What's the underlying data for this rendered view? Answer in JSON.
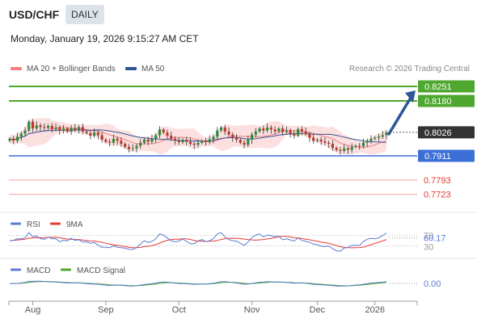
{
  "header": {
    "symbol": "USD/CHF",
    "timeframe": "DAILY",
    "datetime": "Monday, January 19, 2026 9:15:27 AM CET"
  },
  "legend": {
    "ma20_label": "MA 20 + Bollinger Bands",
    "ma20_color": "#f08080",
    "ma50_label": "MA 50",
    "ma50_color": "#2f5597",
    "credit": "Research © 2026 Trading Central"
  },
  "chart_data": [
    {
      "type": "candlestick",
      "title": "",
      "x_labels": [
        "Aug",
        "Sep",
        "Oct",
        "Nov",
        "Dec",
        "2026"
      ],
      "ylim": [
        0.775,
        0.826
      ],
      "grid": false,
      "close": [
        0.7995,
        0.7985,
        0.8005,
        0.802,
        0.8035,
        0.8078,
        0.8045,
        0.806,
        0.8052,
        0.8048,
        0.8058,
        0.8042,
        0.805,
        0.8035,
        0.8045,
        0.803,
        0.8048,
        0.804,
        0.8052,
        0.803,
        0.8022,
        0.801,
        0.8025,
        0.8012,
        0.799,
        0.798,
        0.7975,
        0.7995,
        0.7985,
        0.797,
        0.7955,
        0.7945,
        0.7948,
        0.796,
        0.7975,
        0.799,
        0.798,
        0.7995,
        0.8012,
        0.804,
        0.8025,
        0.801,
        0.7995,
        0.7985,
        0.7978,
        0.799,
        0.798,
        0.797,
        0.7965,
        0.7975,
        0.7985,
        0.7978,
        0.7992,
        0.8005,
        0.8035,
        0.805,
        0.803,
        0.8015,
        0.8,
        0.799,
        0.7975,
        0.7965,
        0.799,
        0.8015,
        0.803,
        0.8045,
        0.8035,
        0.805,
        0.804,
        0.803,
        0.8045,
        0.8028,
        0.8035,
        0.802,
        0.801,
        0.8042,
        0.803,
        0.8018,
        0.8,
        0.7985,
        0.799,
        0.7982,
        0.7975,
        0.797,
        0.795,
        0.794,
        0.7935,
        0.7948,
        0.794,
        0.7955,
        0.796,
        0.7958,
        0.7975,
        0.7985,
        0.7995,
        0.8,
        0.8005,
        0.8012,
        0.8026
      ],
      "series": [
        {
          "name": "MA 20 + Bollinger Bands",
          "color": "#f08080",
          "band_fill": "#fbd9d9"
        },
        {
          "name": "MA 50",
          "color": "#2f5597"
        }
      ],
      "levels": [
        {
          "value": 0.8251,
          "label": "0.8251",
          "color": "#4ea72e",
          "style": "green"
        },
        {
          "value": 0.818,
          "label": "0.8180",
          "color": "#4ea72e",
          "style": "green"
        },
        {
          "value": 0.8026,
          "label": "0.8026",
          "color": "#333333",
          "style": "current"
        },
        {
          "value": 0.7911,
          "label": "0.7911",
          "color": "#3c6fd6",
          "style": "blue"
        },
        {
          "value": 0.7793,
          "label": "0.7793",
          "color": "#e53935",
          "style": "red"
        },
        {
          "value": 0.7723,
          "label": "0.7723",
          "color": "#e53935",
          "style": "red"
        }
      ],
      "projection": {
        "from": 0.8026,
        "to": 0.8251,
        "color": "#2f5597"
      }
    },
    {
      "type": "line",
      "title": "RSI",
      "series": [
        {
          "name": "RSI",
          "color": "#5b7bd5"
        },
        {
          "name": "9MA",
          "color": "#e53935"
        }
      ],
      "levels": [
        70,
        30
      ],
      "current_value": "60.17",
      "level_labels": [
        "70",
        "30"
      ]
    },
    {
      "type": "line",
      "title": "MACD",
      "series": [
        {
          "name": "MACD",
          "color": "#5b7bd5"
        },
        {
          "name": "MACD Signal",
          "color": "#4ea72e"
        }
      ],
      "current_value": "0.00"
    }
  ]
}
